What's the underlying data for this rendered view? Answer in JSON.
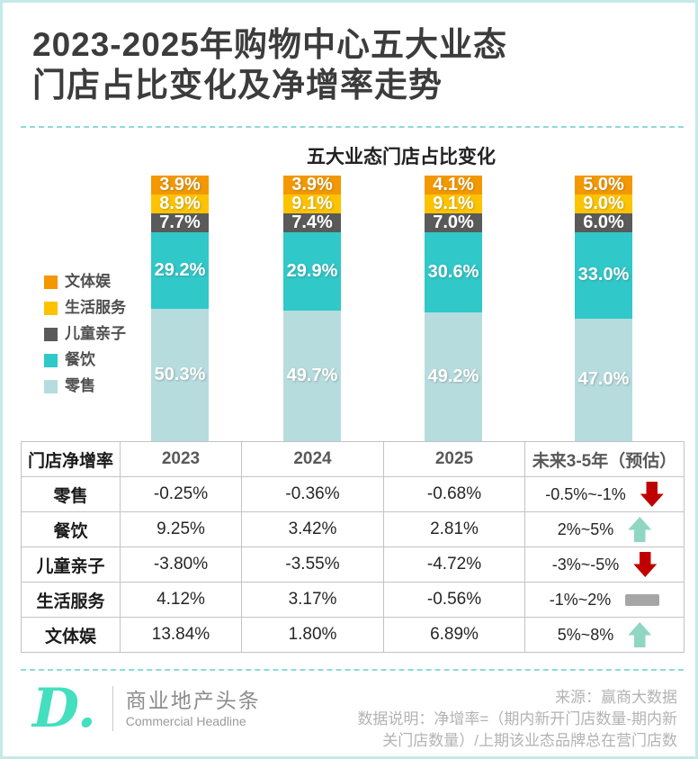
{
  "page": {
    "title_line1": "2023-2025年购物中心五大业态",
    "title_line2": "门店占比变化及净增率走势"
  },
  "chart_data": {
    "type": "bar",
    "stacked": true,
    "title": "五大业态门店占比变化",
    "categories": [
      "2023",
      "2024",
      "2025",
      "未来3-5年（预估）"
    ],
    "series": [
      {
        "name": "文体娱",
        "color": "#f39800",
        "values": [
          3.9,
          3.9,
          4.1,
          5.0
        ]
      },
      {
        "name": "生活服务",
        "color": "#fdc300",
        "values": [
          8.9,
          9.1,
          9.1,
          9.0
        ]
      },
      {
        "name": "儿童亲子",
        "color": "#5a5a5a",
        "values": [
          7.7,
          7.4,
          7.0,
          6.0
        ]
      },
      {
        "name": "餐饮",
        "color": "#30c8c8",
        "values": [
          29.2,
          29.9,
          30.6,
          33.0
        ]
      },
      {
        "name": "零售",
        "color": "#b6dcde",
        "values": [
          50.3,
          49.7,
          49.2,
          47.0
        ]
      }
    ],
    "value_suffix": "%",
    "legend_position": "left",
    "ylim": [
      0,
      100
    ],
    "grid": false
  },
  "table": {
    "header": [
      "门店净增率",
      "2023",
      "2024",
      "2025",
      "未来3-5年（预估）"
    ],
    "rows": [
      {
        "label": "零售",
        "values": [
          "-0.25%",
          "-0.36%",
          "-0.68%"
        ],
        "future": "-0.5%~-1%",
        "trend": "down"
      },
      {
        "label": "餐饮",
        "values": [
          "9.25%",
          "3.42%",
          "2.81%"
        ],
        "future": "2%~5%",
        "trend": "up"
      },
      {
        "label": "儿童亲子",
        "values": [
          "-3.80%",
          "-3.55%",
          "-4.72%"
        ],
        "future": "-3%~-5%",
        "trend": "down"
      },
      {
        "label": "生活服务",
        "values": [
          "4.12%",
          "3.17%",
          "-0.56%"
        ],
        "future": "-1%~2%",
        "trend": "flat"
      },
      {
        "label": "文体娱",
        "values": [
          "13.84%",
          "1.80%",
          "6.89%"
        ],
        "future": "5%~8%",
        "trend": "up"
      }
    ]
  },
  "footer": {
    "logo_mark": "D.",
    "brand_cn": "商业地产头条",
    "brand_en": "Commercial Headline",
    "source_line1": "来源：赢商大数据",
    "source_line2": "数据说明：净增率=（期内新开门店数量-期内新",
    "source_line3": "关门店数量）/上期该业态品牌总在营门店数"
  },
  "colors": {
    "frame_border": "#c5e9e9",
    "dashed_separator": "#8fd9d9",
    "trend_down": "#c00000",
    "trend_up": "#8fd6c3",
    "trend_flat": "#a6a6a6",
    "logo_mint": "#43dfbf"
  }
}
